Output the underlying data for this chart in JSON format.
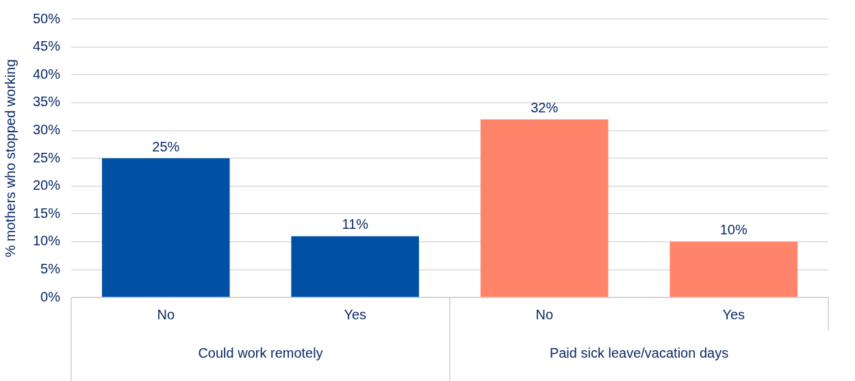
{
  "chart_data": {
    "type": "bar",
    "ylabel": "% mothers who stopped working",
    "categories": [
      "No",
      "Yes",
      "No",
      "Yes"
    ],
    "values": [
      25,
      11,
      32,
      10
    ],
    "colors": [
      "#0050a5",
      "#0050a5",
      "#ff8469",
      "#ff8469"
    ],
    "value_labels": [
      "25%",
      "11%",
      "32%",
      "10%"
    ],
    "annotations": [
      "Could work remotely",
      "Paid sick leave/vacation days"
    ],
    "ylim": [
      0,
      50
    ],
    "yticks": [
      {
        "value": 0,
        "label": "0%"
      },
      {
        "value": 5,
        "label": "5%"
      },
      {
        "value": 10,
        "label": "10%"
      },
      {
        "value": 15,
        "label": "15%"
      },
      {
        "value": 20,
        "label": "20%"
      },
      {
        "value": 25,
        "label": "25%"
      },
      {
        "value": 30,
        "label": "30%"
      },
      {
        "value": 35,
        "label": "35%"
      },
      {
        "value": 40,
        "label": "40%"
      },
      {
        "value": 45,
        "label": "45%"
      },
      {
        "value": 50,
        "label": "50%"
      }
    ],
    "grid": "y",
    "legend": false
  }
}
